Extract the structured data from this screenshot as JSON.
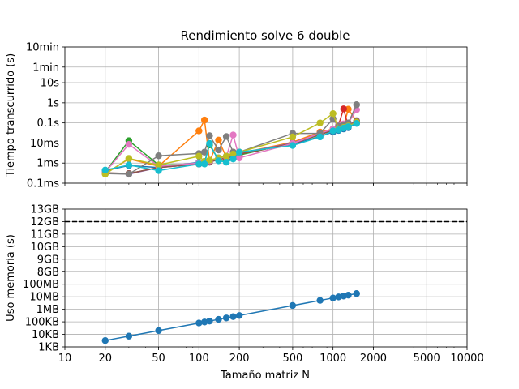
{
  "chart_data": [
    {
      "type": "line",
      "title": "Rendimiento solve 6 double",
      "ylabel": "Tiempo transcurrido (s)",
      "xlabel": "",
      "xscale": "log",
      "yscale": "log",
      "xlim": [
        10,
        10000
      ],
      "ylim": [
        0.0001,
        600
      ],
      "grid": true,
      "yticks": [
        {
          "value": 0.0001,
          "label": "0.1ms"
        },
        {
          "value": 0.001,
          "label": "1ms"
        },
        {
          "value": 0.01,
          "label": "10ms"
        },
        {
          "value": 0.1,
          "label": "0.1s"
        },
        {
          "value": 1,
          "label": "1s"
        },
        {
          "value": 10,
          "label": "10s"
        },
        {
          "value": 60,
          "label": "1min"
        },
        {
          "value": 600,
          "label": "10min"
        }
      ],
      "series": [
        {
          "color": "#1f77b4",
          "x": [
            20,
            30,
            50,
            100,
            110,
            120,
            140,
            160,
            180,
            200,
            500,
            800,
            1000,
            1100,
            1200,
            1300,
            1500
          ],
          "y": [
            0.00042,
            0.00075,
            0.0006,
            0.0011,
            0.0012,
            0.0013,
            0.0018,
            0.0022,
            0.0028,
            0.0032,
            0.0085,
            0.021,
            0.035,
            0.042,
            0.05,
            0.058,
            0.095
          ]
        },
        {
          "color": "#ff7f0e",
          "x": [
            20,
            30,
            50,
            100,
            110,
            120,
            140,
            160,
            180,
            200,
            500,
            800,
            1000,
            1100,
            1200,
            1300,
            1500
          ],
          "y": [
            0.0003,
            0.0016,
            0.0007,
            0.04,
            0.14,
            0.0012,
            0.014,
            0.002,
            0.0035,
            0.003,
            0.011,
            0.035,
            0.05,
            0.06,
            0.07,
            0.48,
            0.12
          ]
        },
        {
          "color": "#2ca02c",
          "x": [
            20,
            30,
            50,
            100,
            110,
            120,
            140,
            160,
            180,
            200,
            500,
            800,
            1000,
            1100,
            1200,
            1300,
            1500
          ],
          "y": [
            0.00035,
            0.013,
            0.0008,
            0.0009,
            0.0011,
            0.008,
            0.0015,
            0.0013,
            0.0018,
            0.0025,
            0.01,
            0.025,
            0.045,
            0.05,
            0.06,
            0.075,
            0.11
          ]
        },
        {
          "color": "#d62728",
          "x": [
            20,
            30,
            50,
            100,
            110,
            120,
            140,
            160,
            180,
            200,
            500,
            800,
            1000,
            1100,
            1200,
            1300,
            1500
          ],
          "y": [
            0.0003,
            0.0003,
            0.0006,
            0.0009,
            0.001,
            0.0012,
            0.0015,
            0.0018,
            0.0022,
            0.0028,
            0.009,
            0.028,
            0.04,
            0.08,
            0.5,
            0.065,
            0.12
          ]
        },
        {
          "color": "#9467bd",
          "x": [
            20,
            30,
            50,
            100,
            110,
            120,
            140,
            160,
            180,
            200,
            500,
            800,
            1000,
            1100,
            1200,
            1300,
            1500
          ],
          "y": [
            0.00032,
            0.00028,
            0.0006,
            0.0009,
            0.001,
            0.0012,
            0.0016,
            0.0019,
            0.0023,
            0.003,
            0.01,
            0.03,
            0.045,
            0.06,
            0.07,
            0.08,
            0.13
          ]
        },
        {
          "color": "#8c564b",
          "x": [
            20,
            30,
            50,
            100,
            110,
            120,
            140,
            160,
            180,
            200,
            500,
            800,
            1000,
            1100,
            1200,
            1300,
            1500
          ],
          "y": [
            0.00033,
            0.0003,
            0.0006,
            0.0009,
            0.001,
            0.0011,
            0.0015,
            0.0018,
            0.0022,
            0.0028,
            0.0095,
            0.027,
            0.042,
            0.055,
            0.065,
            0.075,
            0.12
          ]
        },
        {
          "color": "#e377c2",
          "x": [
            20,
            30,
            50,
            100,
            110,
            120,
            140,
            160,
            180,
            200,
            500,
            800,
            1000,
            1100,
            1200,
            1300,
            1500
          ],
          "y": [
            0.00035,
            0.0085,
            0.0007,
            0.001,
            0.0011,
            0.0013,
            0.0017,
            0.0021,
            0.025,
            0.0018,
            0.0095,
            0.03,
            0.05,
            0.08,
            0.09,
            0.1,
            0.45
          ]
        },
        {
          "color": "#7f7f7f",
          "x": [
            20,
            30,
            50,
            100,
            110,
            120,
            140,
            160,
            180,
            200,
            500,
            800,
            1000,
            1100,
            1200,
            1300,
            1500
          ],
          "y": [
            0.0003,
            0.00028,
            0.0023,
            0.003,
            0.0035,
            0.023,
            0.0045,
            0.021,
            0.0035,
            0.0035,
            0.03,
            0.03,
            0.16,
            0.07,
            0.08,
            0.1,
            0.8
          ]
        },
        {
          "color": "#bcbd22",
          "x": [
            20,
            30,
            50,
            100,
            110,
            120,
            140,
            160,
            180,
            200,
            500,
            800,
            1000,
            1100,
            1200,
            1300,
            1500
          ],
          "y": [
            0.00028,
            0.0017,
            0.0008,
            0.0022,
            0.0012,
            0.0014,
            0.0018,
            0.0022,
            0.0028,
            0.0035,
            0.02,
            0.1,
            0.29,
            0.05,
            0.06,
            0.07,
            0.11
          ]
        },
        {
          "color": "#17becf",
          "x": [
            20,
            30,
            50,
            100,
            110,
            120,
            140,
            160,
            180,
            200,
            500,
            800,
            1000,
            1100,
            1200,
            1300,
            1500
          ],
          "y": [
            0.00045,
            0.0008,
            0.00042,
            0.0009,
            0.0009,
            0.0095,
            0.0013,
            0.0011,
            0.0016,
            0.0035,
            0.0075,
            0.02,
            0.04,
            0.045,
            0.055,
            0.065,
            0.095
          ]
        }
      ]
    },
    {
      "type": "line",
      "title": "",
      "ylabel": "Uso memoria (s)",
      "xlabel": "Tamaño matriz N",
      "xscale": "log",
      "xlim": [
        10,
        10000
      ],
      "grid": true,
      "xticks": [
        {
          "value": 10,
          "label": "10"
        },
        {
          "value": 20,
          "label": "20"
        },
        {
          "value": 50,
          "label": "50"
        },
        {
          "value": 100,
          "label": "100"
        },
        {
          "value": 200,
          "label": "200"
        },
        {
          "value": 500,
          "label": "500"
        },
        {
          "value": 1000,
          "label": "1000"
        },
        {
          "value": 2000,
          "label": "2000"
        },
        {
          "value": 5000,
          "label": "5000"
        },
        {
          "value": 10000,
          "label": "10000"
        }
      ],
      "yticks": [
        "1KB",
        "10KB",
        "100KB",
        "1MB",
        "10MB",
        "100MB",
        "8GB",
        "9GB",
        "10GB",
        "11GB",
        "12GB",
        "13GB"
      ],
      "reference_line": {
        "label": "12GB",
        "style": "dashed",
        "color": "#000000"
      },
      "series": [
        {
          "color": "#1f77b4",
          "x": [
            20,
            30,
            50,
            100,
            110,
            120,
            140,
            160,
            180,
            200,
            500,
            800,
            1000,
            1100,
            1200,
            1300,
            1500
          ],
          "y": [
            "3.2KB",
            "7.2KB",
            "20KB",
            "80KB",
            "97KB",
            "115KB",
            "157KB",
            "205KB",
            "259KB",
            "320KB",
            "2MB",
            "5.1MB",
            "8MB",
            "9.7MB",
            "11.5MB",
            "13.5MB",
            "18MB"
          ]
        }
      ]
    }
  ]
}
